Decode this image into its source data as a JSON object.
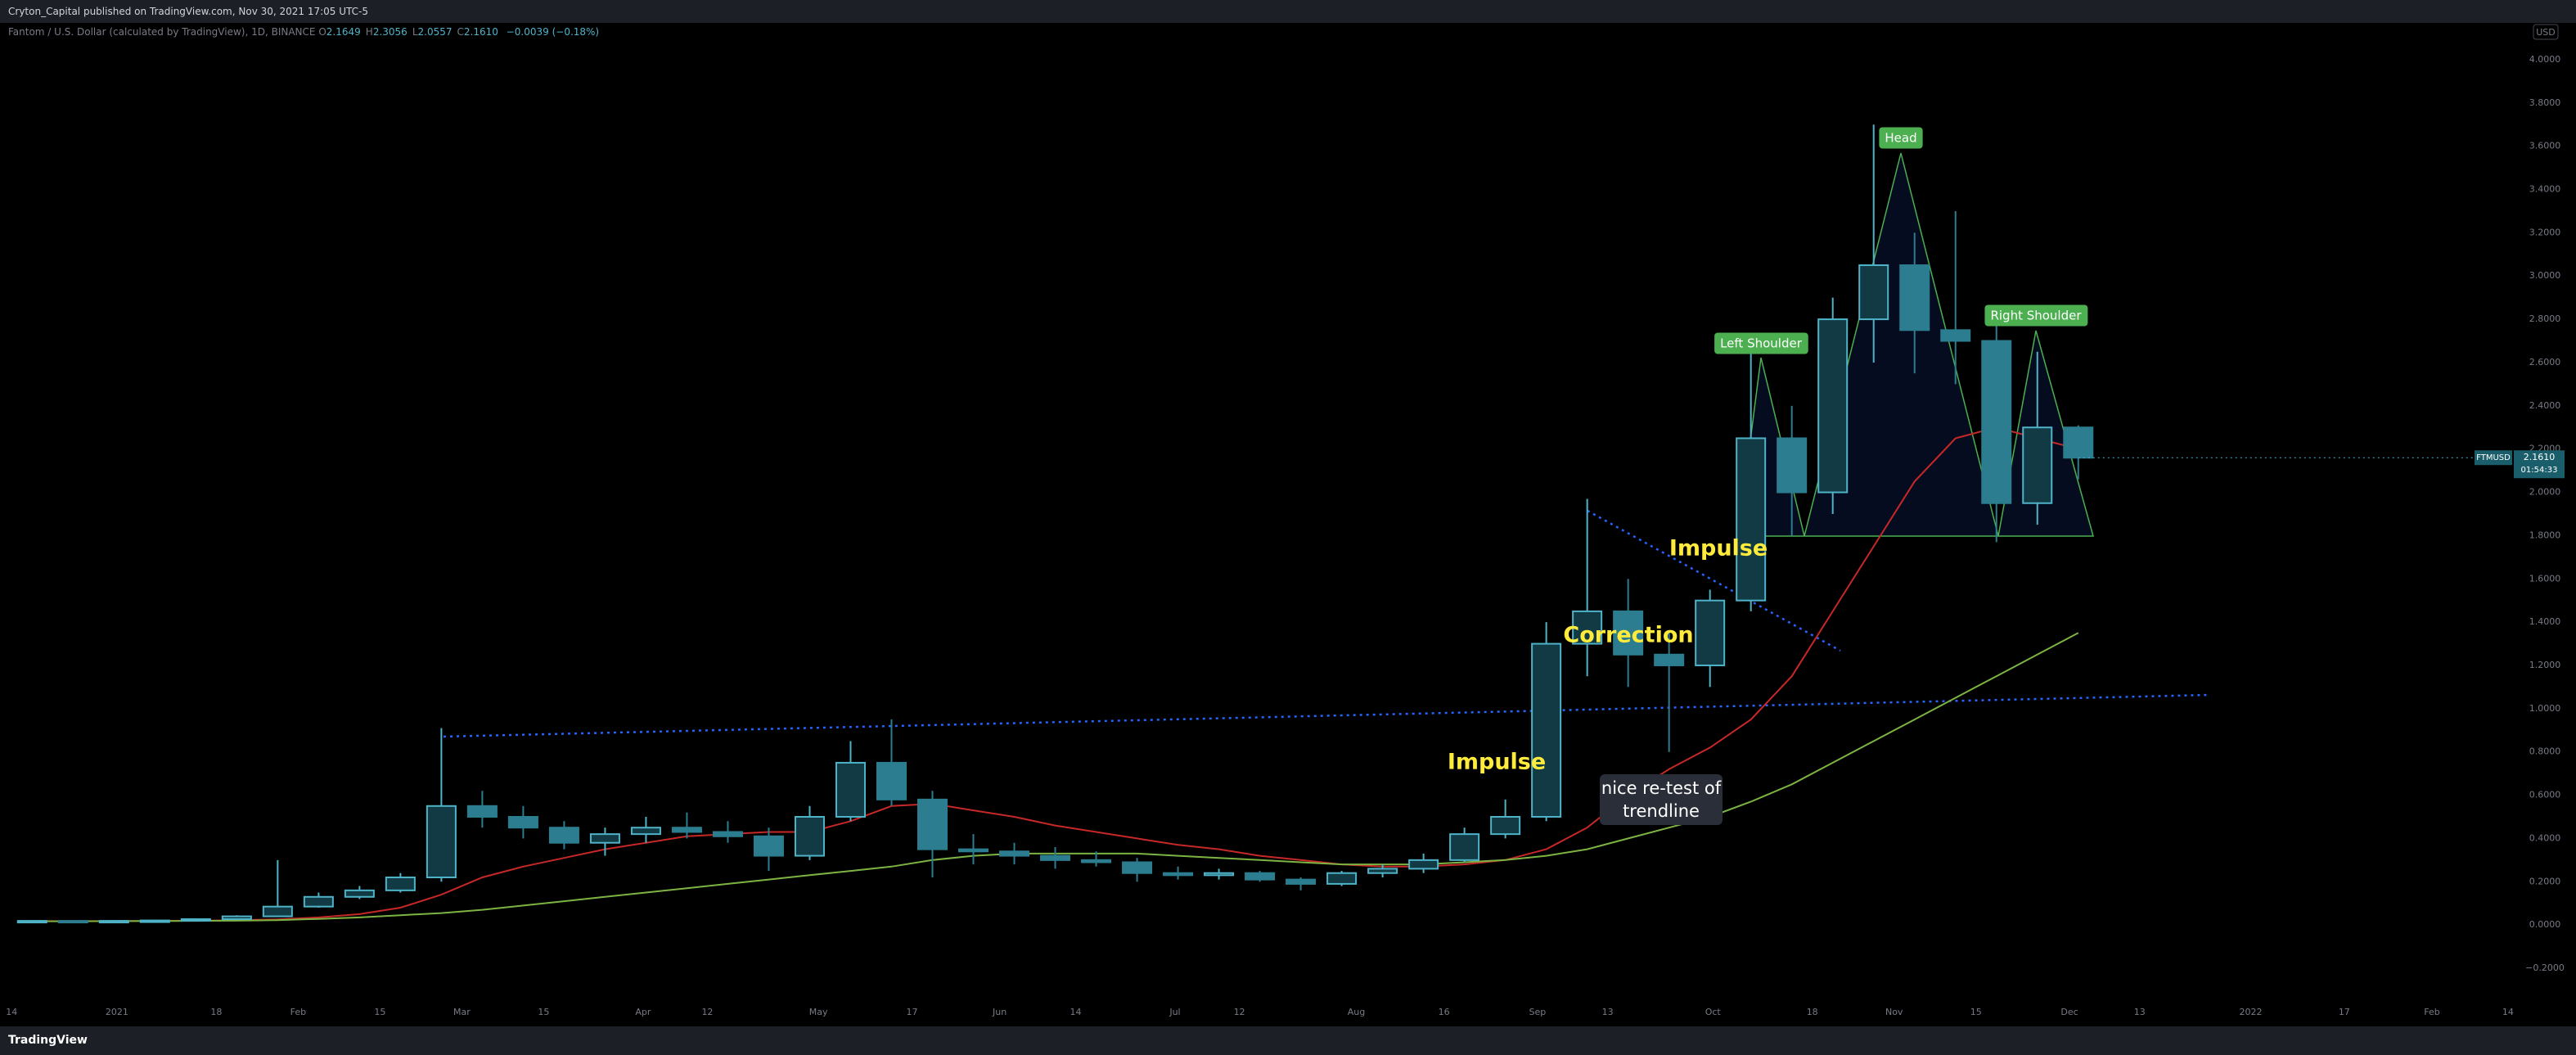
{
  "header": {
    "publisher": "Cryton_Capital published on TradingView.com, Nov 30, 2021 17:05 UTC-5"
  },
  "footer": {
    "brand": "TradingView"
  },
  "chart_data": {
    "type": "candlestick",
    "title": "Fantom / U.S. Dollar (calculated by TradingView), 1D, BINANCE",
    "ohlc_legend": [
      {
        "label": "O",
        "value": "2.1649"
      },
      {
        "label": "H",
        "value": "2.3056"
      },
      {
        "label": "L",
        "value": "2.0557"
      },
      {
        "label": "C",
        "value": "2.1610"
      }
    ],
    "change": "−0.0039 (−0.18%)",
    "currency": "USD",
    "symbol": "FTMUSD",
    "last_price": "2.1610",
    "countdown": "01:54:33",
    "up_color": "#4fb3c8",
    "down_color": "#2b7d8f",
    "x": [
      "2020-12-14",
      "2020-12-21",
      "2020-12-28",
      "2021-01-04",
      "2021-01-11",
      "2021-01-18",
      "2021-01-25",
      "2021-02-01",
      "2021-02-08",
      "2021-02-15",
      "2021-02-22",
      "2021-03-01",
      "2021-03-08",
      "2021-03-15",
      "2021-03-22",
      "2021-03-29",
      "2021-04-05",
      "2021-04-12",
      "2021-04-19",
      "2021-04-26",
      "2021-05-03",
      "2021-05-10",
      "2021-05-17",
      "2021-05-24",
      "2021-05-31",
      "2021-06-07",
      "2021-06-14",
      "2021-06-21",
      "2021-06-28",
      "2021-07-05",
      "2021-07-12",
      "2021-07-19",
      "2021-07-26",
      "2021-08-02",
      "2021-08-09",
      "2021-08-16",
      "2021-08-23",
      "2021-08-30",
      "2021-09-06",
      "2021-09-13",
      "2021-09-20",
      "2021-09-27",
      "2021-10-04",
      "2021-10-11",
      "2021-10-18",
      "2021-10-25",
      "2021-11-01",
      "2021-11-08",
      "2021-11-15",
      "2021-11-22",
      "2021-11-29"
    ],
    "open": [
      0.018,
      0.019,
      0.018,
      0.019,
      0.021,
      0.027,
      0.04,
      0.085,
      0.13,
      0.16,
      0.22,
      0.55,
      0.5,
      0.45,
      0.38,
      0.42,
      0.45,
      0.43,
      0.41,
      0.32,
      0.5,
      0.75,
      0.58,
      0.35,
      0.34,
      0.32,
      0.3,
      0.29,
      0.24,
      0.23,
      0.24,
      0.21,
      0.19,
      0.24,
      0.26,
      0.3,
      0.42,
      0.5,
      1.3,
      1.45,
      1.25,
      1.2,
      1.5,
      2.25,
      2.0,
      2.8,
      3.05,
      2.75,
      2.7,
      1.95,
      2.3
    ],
    "high": [
      0.02,
      0.021,
      0.02,
      0.024,
      0.03,
      0.045,
      0.3,
      0.15,
      0.18,
      0.24,
      0.91,
      0.62,
      0.55,
      0.48,
      0.45,
      0.5,
      0.52,
      0.48,
      0.45,
      0.55,
      0.85,
      0.95,
      0.62,
      0.42,
      0.38,
      0.36,
      0.34,
      0.31,
      0.27,
      0.26,
      0.25,
      0.22,
      0.25,
      0.28,
      0.33,
      0.45,
      0.58,
      1.4,
      1.97,
      1.6,
      1.35,
      1.55,
      2.65,
      2.4,
      2.9,
      3.7,
      3.2,
      3.3,
      2.8,
      2.65,
      2.31
    ],
    "low": [
      0.016,
      0.016,
      0.016,
      0.017,
      0.019,
      0.025,
      0.038,
      0.08,
      0.12,
      0.15,
      0.2,
      0.45,
      0.4,
      0.35,
      0.32,
      0.38,
      0.4,
      0.38,
      0.25,
      0.3,
      0.48,
      0.55,
      0.22,
      0.28,
      0.28,
      0.26,
      0.27,
      0.2,
      0.21,
      0.21,
      0.2,
      0.16,
      0.18,
      0.22,
      0.24,
      0.29,
      0.4,
      0.48,
      1.15,
      1.1,
      0.8,
      1.1,
      1.45,
      1.8,
      1.9,
      2.6,
      2.55,
      2.5,
      1.77,
      1.85,
      2.06
    ],
    "close": [
      0.019,
      0.018,
      0.019,
      0.021,
      0.027,
      0.04,
      0.085,
      0.13,
      0.16,
      0.22,
      0.55,
      0.5,
      0.45,
      0.38,
      0.42,
      0.45,
      0.43,
      0.41,
      0.32,
      0.5,
      0.75,
      0.58,
      0.35,
      0.34,
      0.32,
      0.3,
      0.29,
      0.24,
      0.23,
      0.24,
      0.21,
      0.19,
      0.24,
      0.26,
      0.3,
      0.42,
      0.5,
      1.3,
      1.45,
      1.25,
      1.2,
      1.5,
      2.25,
      2.0,
      2.8,
      3.05,
      2.75,
      2.7,
      1.95,
      2.3,
      2.16
    ],
    "moving_averages": [
      {
        "color": "#c62828",
        "values": [
          0.018,
          0.018,
          0.018,
          0.019,
          0.02,
          0.022,
          0.026,
          0.035,
          0.05,
          0.08,
          0.14,
          0.22,
          0.27,
          0.31,
          0.35,
          0.38,
          0.41,
          0.42,
          0.43,
          0.43,
          0.48,
          0.55,
          0.56,
          0.53,
          0.5,
          0.46,
          0.43,
          0.4,
          0.37,
          0.35,
          0.32,
          0.3,
          0.28,
          0.27,
          0.27,
          0.28,
          0.3,
          0.35,
          0.45,
          0.6,
          0.72,
          0.82,
          0.95,
          1.15,
          1.45,
          1.75,
          2.05,
          2.25,
          2.3,
          2.25,
          2.2
        ]
      },
      {
        "color": "#7cb342",
        "values": [
          0.017,
          0.017,
          0.018,
          0.018,
          0.019,
          0.02,
          0.022,
          0.028,
          0.035,
          0.045,
          0.055,
          0.07,
          0.09,
          0.11,
          0.13,
          0.15,
          0.17,
          0.19,
          0.21,
          0.23,
          0.25,
          0.27,
          0.3,
          0.32,
          0.33,
          0.33,
          0.33,
          0.33,
          0.32,
          0.31,
          0.3,
          0.29,
          0.28,
          0.28,
          0.28,
          0.29,
          0.3,
          0.32,
          0.35,
          0.4,
          0.45,
          0.5,
          0.57,
          0.65,
          0.75,
          0.85,
          0.95,
          1.05,
          1.15,
          1.25,
          1.35
        ]
      }
    ],
    "annotations": [
      "Head",
      "Left Shoulder",
      "Right Shoulder",
      "Impulse",
      "Correction",
      "Impulse",
      "nice re-test of trendline"
    ],
    "xlim": [
      "2020-12-12",
      "2022-02-15"
    ],
    "xticks": [
      {
        "value": "2020-12-14",
        "label": "14"
      },
      {
        "value": "2021-01-01",
        "label": "2021"
      },
      {
        "value": "2021-01-18",
        "label": "18"
      },
      {
        "value": "2021-02-01",
        "label": "Feb"
      },
      {
        "value": "2021-02-15",
        "label": "15"
      },
      {
        "value": "2021-03-01",
        "label": "Mar"
      },
      {
        "value": "2021-03-15",
        "label": "15"
      },
      {
        "value": "2021-04-01",
        "label": "Apr"
      },
      {
        "value": "2021-04-12",
        "label": "12"
      },
      {
        "value": "2021-05-01",
        "label": "May"
      },
      {
        "value": "2021-05-17",
        "label": "17"
      },
      {
        "value": "2021-06-01",
        "label": "Jun"
      },
      {
        "value": "2021-06-14",
        "label": "14"
      },
      {
        "value": "2021-07-01",
        "label": "Jul"
      },
      {
        "value": "2021-07-12",
        "label": "12"
      },
      {
        "value": "2021-08-01",
        "label": "Aug"
      },
      {
        "value": "2021-08-16",
        "label": "16"
      },
      {
        "value": "2021-09-01",
        "label": "Sep"
      },
      {
        "value": "2021-09-13",
        "label": "13"
      },
      {
        "value": "2021-10-01",
        "label": "Oct"
      },
      {
        "value": "2021-10-18",
        "label": "18"
      },
      {
        "value": "2021-11-01",
        "label": "Nov"
      },
      {
        "value": "2021-11-15",
        "label": "15"
      },
      {
        "value": "2021-12-01",
        "label": "Dec"
      },
      {
        "value": "2021-12-13",
        "label": "13"
      },
      {
        "value": "2022-01-01",
        "label": "2022"
      },
      {
        "value": "2022-01-17",
        "label": "17"
      },
      {
        "value": "2022-02-01",
        "label": "Feb"
      },
      {
        "value": "2022-02-14",
        "label": "14"
      }
    ],
    "ylim": [
      -0.34,
      4.17
    ],
    "yticks": [
      {
        "value": 4,
        "label": "4.0000"
      },
      {
        "value": 3.8,
        "label": "3.8000"
      },
      {
        "value": 3.6,
        "label": "3.6000"
      },
      {
        "value": 3.4,
        "label": "3.4000"
      },
      {
        "value": 3.2,
        "label": "3.2000"
      },
      {
        "value": 3,
        "label": "3.0000"
      },
      {
        "value": 2.8,
        "label": "2.8000"
      },
      {
        "value": 2.6,
        "label": "2.6000"
      },
      {
        "value": 2.4,
        "label": "2.4000"
      },
      {
        "value": 2.2,
        "label": "2.2000"
      },
      {
        "value": 2,
        "label": "2.0000"
      },
      {
        "value": 1.8,
        "label": "1.8000"
      },
      {
        "value": 1.6,
        "label": "1.6000"
      },
      {
        "value": 1.4,
        "label": "1.4000"
      },
      {
        "value": 1.2,
        "label": "1.2000"
      },
      {
        "value": 1,
        "label": "1.0000"
      },
      {
        "value": 0.8,
        "label": "0.8000"
      },
      {
        "value": 0.6,
        "label": "0.6000"
      },
      {
        "value": 0.4,
        "label": "0.4000"
      },
      {
        "value": 0.2,
        "label": "0.2000"
      },
      {
        "value": 0,
        "label": "0.0000"
      },
      {
        "value": -0.2,
        "label": "−0.2000"
      }
    ],
    "grid": false
  }
}
